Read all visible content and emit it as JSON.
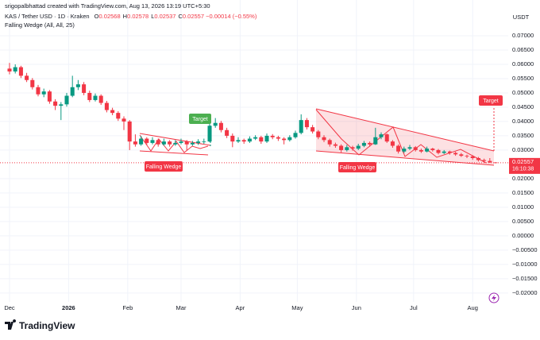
{
  "header": {
    "credit": "srigopalbhattad created with TradingView.com, Aug 13, 2026 13:19 UTC+5:30",
    "symbol": "KAS / Tether USD · 1D · Kraken",
    "ohlc_keys": [
      "O",
      "H",
      "L",
      "C"
    ],
    "change_label": "−0.00014 (−0.55%)",
    "indicator": "Falling Wedge (All, All, 25)",
    "currency": "USDT"
  },
  "chart_data": {
    "type": "candlestick",
    "up_color": "#089981",
    "down_color": "#f23645",
    "candles": [
      [
        0.0585,
        0.0605,
        0.0565,
        0.0575
      ],
      [
        0.0575,
        0.06,
        0.0568,
        0.059
      ],
      [
        0.059,
        0.0595,
        0.0552,
        0.056
      ],
      [
        0.056,
        0.057,
        0.0538,
        0.0545
      ],
      [
        0.0545,
        0.0552,
        0.0512,
        0.052
      ],
      [
        0.052,
        0.0528,
        0.0488,
        0.0495
      ],
      [
        0.0495,
        0.0515,
        0.0485,
        0.0505
      ],
      [
        0.0505,
        0.051,
        0.0462,
        0.047
      ],
      [
        0.047,
        0.0478,
        0.044,
        0.0455
      ],
      [
        0.0455,
        0.0468,
        0.0405,
        0.046
      ],
      [
        0.046,
        0.05,
        0.0452,
        0.049
      ],
      [
        0.049,
        0.056,
        0.0485,
        0.052
      ],
      [
        0.052,
        0.0545,
        0.051,
        0.053
      ],
      [
        0.053,
        0.0538,
        0.0492,
        0.05
      ],
      [
        0.05,
        0.0508,
        0.0468,
        0.0475
      ],
      [
        0.0475,
        0.0498,
        0.047,
        0.049
      ],
      [
        0.049,
        0.0495,
        0.0458,
        0.0465
      ],
      [
        0.0465,
        0.0472,
        0.0432,
        0.044
      ],
      [
        0.044,
        0.0448,
        0.0422,
        0.043
      ],
      [
        0.043,
        0.0436,
        0.0402,
        0.041
      ],
      [
        0.041,
        0.0418,
        0.037,
        0.04
      ],
      [
        0.04,
        0.0405,
        0.03,
        0.033
      ],
      [
        0.033,
        0.0355,
        0.0312,
        0.032
      ],
      [
        0.032,
        0.035,
        0.0315,
        0.034
      ],
      [
        0.034,
        0.0345,
        0.0318,
        0.0325
      ],
      [
        0.0325,
        0.0345,
        0.032,
        0.0335
      ],
      [
        0.0335,
        0.034,
        0.0312,
        0.032
      ],
      [
        0.032,
        0.034,
        0.0315,
        0.033
      ],
      [
        0.033,
        0.0335,
        0.0312,
        0.032
      ],
      [
        0.032,
        0.0335,
        0.0315,
        0.0325
      ],
      [
        0.0325,
        0.034,
        0.032,
        0.033
      ],
      [
        0.033,
        0.0335,
        0.03,
        0.032
      ],
      [
        0.032,
        0.0332,
        0.0315,
        0.0325
      ],
      [
        0.0325,
        0.0338,
        0.0318,
        0.033
      ],
      [
        0.033,
        0.034,
        0.0322,
        0.033
      ],
      [
        0.033,
        0.04,
        0.0328,
        0.0385
      ],
      [
        0.0385,
        0.0412,
        0.0378,
        0.0395
      ],
      [
        0.0395,
        0.0402,
        0.0362,
        0.037
      ],
      [
        0.037,
        0.0378,
        0.0342,
        0.035
      ],
      [
        0.035,
        0.0358,
        0.031,
        0.033
      ],
      [
        0.033,
        0.0345,
        0.0325,
        0.0335
      ],
      [
        0.0335,
        0.034,
        0.0322,
        0.033
      ],
      [
        0.033,
        0.0348,
        0.0325,
        0.034
      ],
      [
        0.034,
        0.0352,
        0.0335,
        0.0345
      ],
      [
        0.0345,
        0.035,
        0.0322,
        0.033
      ],
      [
        0.033,
        0.0358,
        0.0325,
        0.035
      ],
      [
        0.035,
        0.0356,
        0.0338,
        0.0345
      ],
      [
        0.0345,
        0.035,
        0.0332,
        0.034
      ],
      [
        0.034,
        0.0345,
        0.032,
        0.0335
      ],
      [
        0.0335,
        0.0352,
        0.033,
        0.0345
      ],
      [
        0.0345,
        0.0368,
        0.034,
        0.036
      ],
      [
        0.036,
        0.0425,
        0.0355,
        0.0405
      ],
      [
        0.0405,
        0.0412,
        0.0372,
        0.038
      ],
      [
        0.038,
        0.0388,
        0.0358,
        0.0365
      ],
      [
        0.0365,
        0.037,
        0.0338,
        0.0345
      ],
      [
        0.0345,
        0.0352,
        0.0328,
        0.0335
      ],
      [
        0.0335,
        0.034,
        0.0312,
        0.032
      ],
      [
        0.032,
        0.0326,
        0.0308,
        0.0315
      ],
      [
        0.0315,
        0.032,
        0.0292,
        0.03
      ],
      [
        0.03,
        0.0318,
        0.0295,
        0.031
      ],
      [
        0.031,
        0.0315,
        0.0298,
        0.0305
      ],
      [
        0.0305,
        0.0322,
        0.03,
        0.0315
      ],
      [
        0.0315,
        0.0332,
        0.031,
        0.0325
      ],
      [
        0.0325,
        0.033,
        0.0312,
        0.032
      ],
      [
        0.032,
        0.0378,
        0.0318,
        0.0345
      ],
      [
        0.0345,
        0.0362,
        0.0338,
        0.0355
      ],
      [
        0.0355,
        0.0358,
        0.0325,
        0.033
      ],
      [
        0.033,
        0.0335,
        0.0308,
        0.0315
      ],
      [
        0.0315,
        0.032,
        0.0288,
        0.0295
      ],
      [
        0.0295,
        0.0312,
        0.029,
        0.0305
      ],
      [
        0.0305,
        0.0318,
        0.03,
        0.031
      ],
      [
        0.031,
        0.0314,
        0.0295,
        0.03
      ],
      [
        0.03,
        0.0305,
        0.029,
        0.0295
      ],
      [
        0.0295,
        0.0312,
        0.0292,
        0.0305
      ],
      [
        0.0305,
        0.0308,
        0.0295,
        0.03
      ],
      [
        0.03,
        0.0304,
        0.0285,
        0.029
      ],
      [
        0.029,
        0.03,
        0.0286,
        0.0295
      ],
      [
        0.0295,
        0.0298,
        0.0284,
        0.029
      ],
      [
        0.029,
        0.0294,
        0.028,
        0.0285
      ],
      [
        0.0285,
        0.029,
        0.0276,
        0.028
      ],
      [
        0.028,
        0.0284,
        0.0272,
        0.0278
      ],
      [
        0.0278,
        0.0282,
        0.0266,
        0.0272
      ],
      [
        0.0272,
        0.0276,
        0.026,
        0.0265
      ],
      [
        0.0265,
        0.027,
        0.0256,
        0.0262
      ],
      [
        0.0262,
        0.0272,
        0.0255,
        0.0257
      ],
      [
        0.02568,
        0.02578,
        0.02537,
        0.02557
      ]
    ],
    "xlim": [
      -1.667,
      87.22
    ],
    "xticks": [
      {
        "value": 0,
        "label": "Dec"
      },
      {
        "value": 10.33,
        "label": "2026"
      },
      {
        "value": 20.67,
        "label": "Feb"
      },
      {
        "value": 30,
        "label": "Mar"
      },
      {
        "value": 40.33,
        "label": "Apr"
      },
      {
        "value": 50.33,
        "label": "May"
      },
      {
        "value": 60.67,
        "label": "Jun"
      },
      {
        "value": 70.67,
        "label": "Jul"
      },
      {
        "value": 81,
        "label": "Aug"
      }
    ],
    "ylim": [
      -0.0231,
      0.0825
    ],
    "yticks": [
      {
        "value": 0.07,
        "label": "0.07000"
      },
      {
        "value": 0.065,
        "label": "0.06500"
      },
      {
        "value": 0.06,
        "label": "0.06000"
      },
      {
        "value": 0.055,
        "label": "0.05500"
      },
      {
        "value": 0.05,
        "label": "0.05000"
      },
      {
        "value": 0.045,
        "label": "0.04500"
      },
      {
        "value": 0.04,
        "label": "0.04000"
      },
      {
        "value": 0.035,
        "label": "0.03500"
      },
      {
        "value": 0.03,
        "label": "0.03000"
      },
      {
        "value": 0.02,
        "label": "0.02000"
      },
      {
        "value": 0.015,
        "label": "0.01500"
      },
      {
        "value": 0.01,
        "label": "0.01000"
      },
      {
        "value": 0.005,
        "label": "0.00500"
      },
      {
        "value": 0,
        "label": "0.00000"
      },
      {
        "value": -0.005,
        "label": "−0.00500"
      },
      {
        "value": -0.01,
        "label": "−0.01000"
      },
      {
        "value": -0.015,
        "label": "−0.01500"
      },
      {
        "value": -0.02,
        "label": "−0.02000"
      }
    ],
    "grid": true,
    "countdown": "16:10:38",
    "annotations": {
      "wedge_label_1": "Falling Wedge",
      "wedge_label_2": "Falling Wedge",
      "target_label_1": "Target",
      "target_label_2": "Target"
    }
  },
  "footer": {
    "brand": "TradingView"
  }
}
